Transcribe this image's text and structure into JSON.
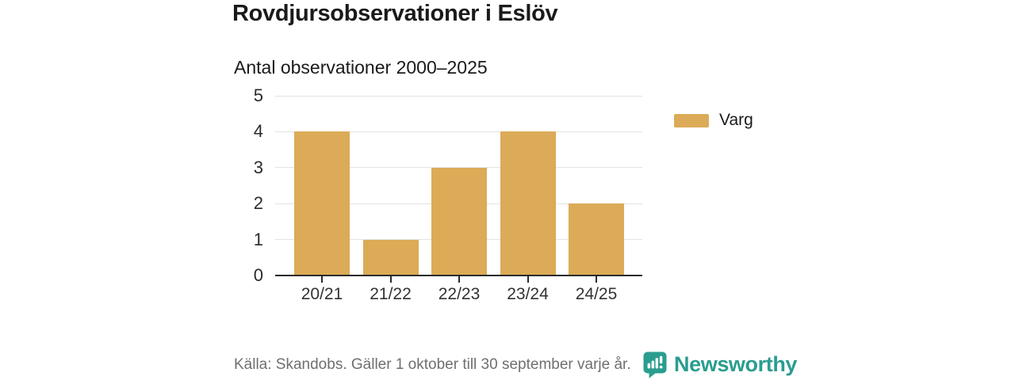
{
  "header": {
    "title": "Rovdjursobservationer i Eslöv",
    "subtitle": "Antal observationer 2000–2025"
  },
  "legend": {
    "items": [
      {
        "label": "Varg",
        "color": "#dbab57"
      }
    ]
  },
  "footer": {
    "source": "Källa: Skandobs. Gäller 1 oktober till 30 september varje år.",
    "brand": "Newsworthy",
    "brand_icon": "newsworthy-speech-bubble-bar-chart"
  },
  "colors": {
    "bar": "#dbab57",
    "brand_teal": "#2a9d8f",
    "grid": "#e3e3e3",
    "axis": "#2b2b2b",
    "text": "#1a1a1a",
    "muted": "#6f6f6f"
  },
  "chart_data": {
    "type": "bar",
    "categories": [
      "20/21",
      "21/22",
      "22/23",
      "23/24",
      "24/25"
    ],
    "series": [
      {
        "name": "Varg",
        "values": [
          4,
          1,
          3,
          4,
          2
        ],
        "color": "#dbab57"
      }
    ],
    "title": "Rovdjursobservationer i Eslöv",
    "subtitle": "Antal observationer 2000–2025",
    "xlabel": "",
    "ylabel": "",
    "ylim": [
      0,
      5
    ],
    "yticks": [
      0,
      1,
      2,
      3,
      4,
      5
    ],
    "grid": true,
    "legend_position": "right"
  }
}
